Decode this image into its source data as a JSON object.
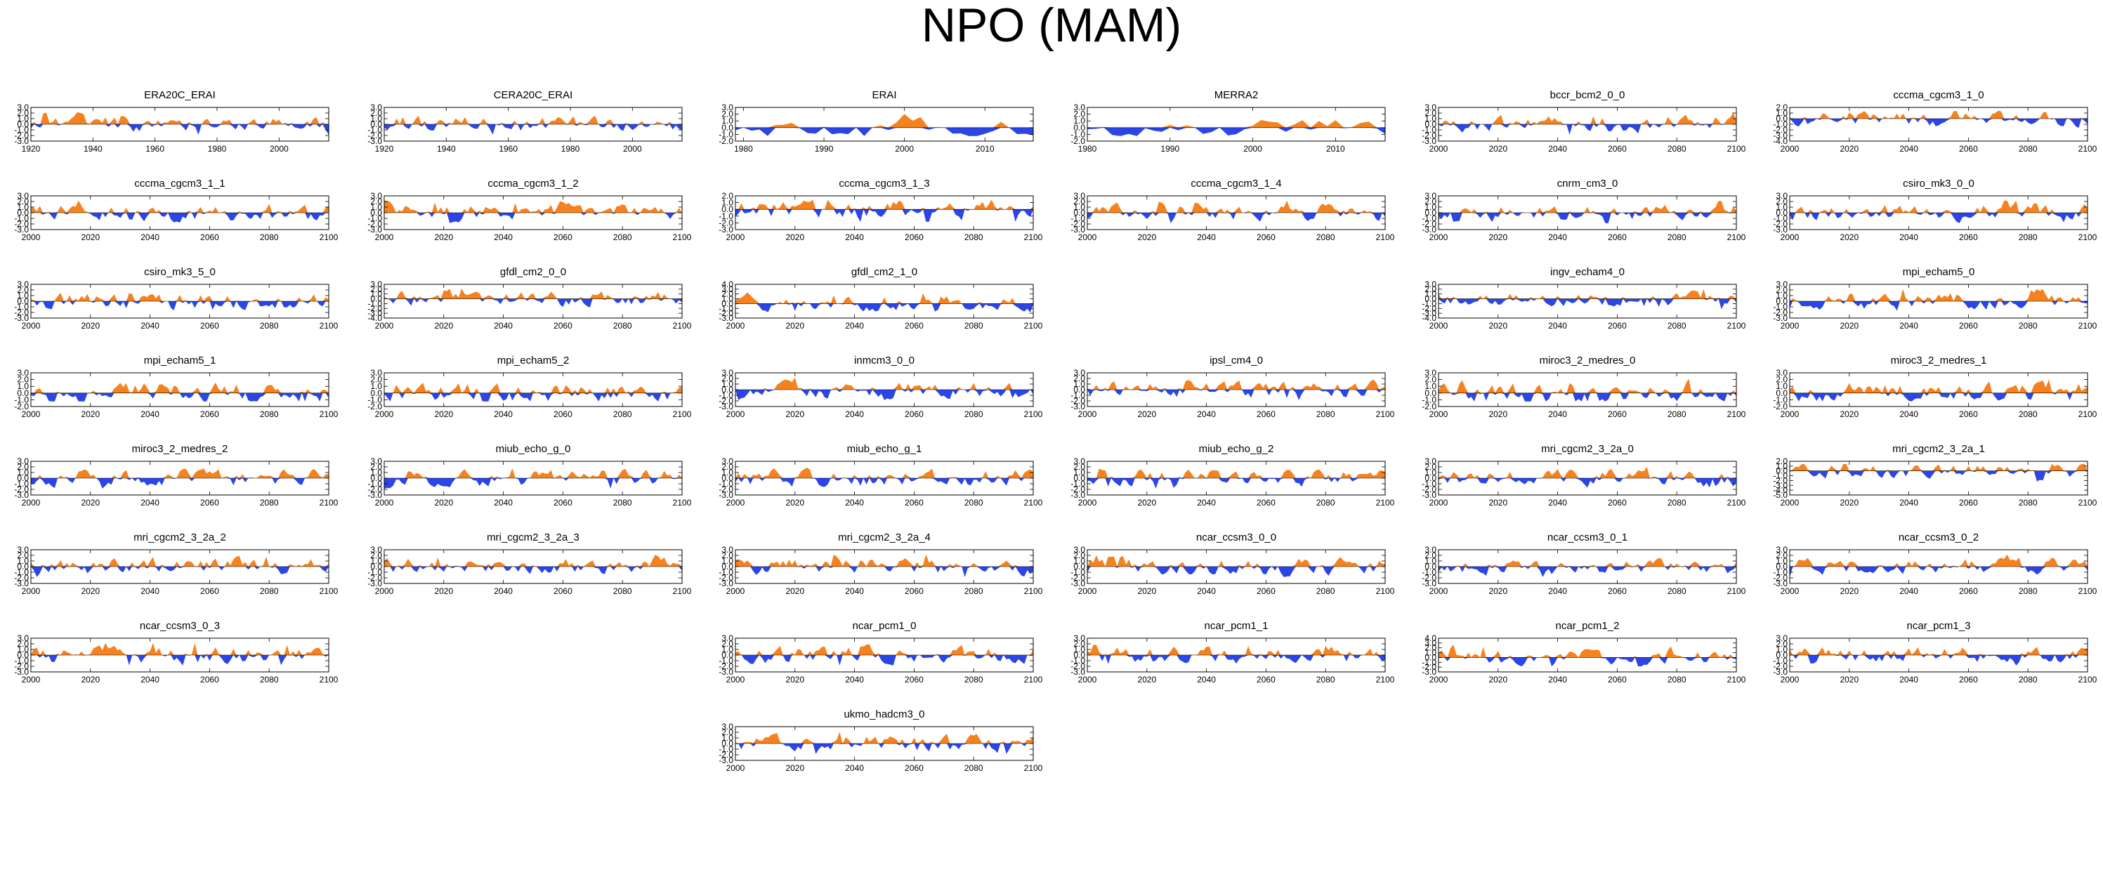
{
  "title": "NPO (MAM)",
  "colors": {
    "positive": "#f5821f",
    "negative": "#2b45e6",
    "axis": "#000000"
  },
  "chart_data": [
    {
      "type": "area",
      "title": "ERA20C_ERAI",
      "xlim": [
        1920,
        2016
      ],
      "xticks": [
        "1920",
        "1940",
        "1960",
        "1980",
        "2000"
      ],
      "yticks": [
        "3.0",
        "2.0",
        "1.0",
        "0.0",
        "-1.0",
        "-2.0",
        "-3.0"
      ],
      "ylim": [
        -3,
        3
      ],
      "seed": 11
    },
    {
      "type": "area",
      "title": "CERA20C_ERAI",
      "xlim": [
        1920,
        2016
      ],
      "xticks": [
        "1920",
        "1940",
        "1960",
        "1980",
        "2000"
      ],
      "yticks": [
        "3.0",
        "2.0",
        "1.0",
        "0.0",
        "-1.0",
        "-2.0",
        "-3.0"
      ],
      "ylim": [
        -3,
        3
      ],
      "seed": 12
    },
    {
      "type": "area",
      "title": "ERAI",
      "xlim": [
        1979,
        2016
      ],
      "xticks": [
        "1980",
        "1990",
        "2000",
        "2010"
      ],
      "yticks": [
        "3.0",
        "2.0",
        "1.0",
        "0.0",
        "-1.0",
        "-2.0"
      ],
      "ylim": [
        -2,
        3
      ],
      "seed": 13
    },
    {
      "type": "area",
      "title": "MERRA2",
      "xlim": [
        1980,
        2016
      ],
      "xticks": [
        "1980",
        "1990",
        "2000",
        "2010"
      ],
      "yticks": [
        "3.0",
        "2.0",
        "1.0",
        "0.0",
        "-1.0",
        "-2.0"
      ],
      "ylim": [
        -2,
        3
      ],
      "seed": 14
    },
    {
      "type": "area",
      "title": "bccr_bcm2_0_0",
      "xlim": [
        2000,
        2100
      ],
      "xticks": [
        "2000",
        "2020",
        "2040",
        "2060",
        "2080",
        "2100"
      ],
      "yticks": [
        "3.0",
        "2.0",
        "1.0",
        "0.0",
        "-1.0",
        "-2.0",
        "-3.0"
      ],
      "ylim": [
        -3,
        3
      ],
      "seed": 15
    },
    {
      "type": "area",
      "title": "cccma_cgcm3_1_0",
      "xlim": [
        2000,
        2100
      ],
      "xticks": [
        "2000",
        "2020",
        "2040",
        "2060",
        "2080",
        "2100"
      ],
      "yticks": [
        "2.0",
        "1.0",
        "0.0",
        "-1.0",
        "-2.0",
        "-3.0",
        "-4.0"
      ],
      "ylim": [
        -4,
        2
      ],
      "seed": 16
    },
    {
      "type": "area",
      "title": "cccma_cgcm3_1_1",
      "xlim": [
        2000,
        2100
      ],
      "xticks": [
        "2000",
        "2020",
        "2040",
        "2060",
        "2080",
        "2100"
      ],
      "yticks": [
        "3.0",
        "2.0",
        "1.0",
        "0.0",
        "-1.0",
        "-2.0",
        "-3.0"
      ],
      "ylim": [
        -3,
        3
      ],
      "seed": 21
    },
    {
      "type": "area",
      "title": "cccma_cgcm3_1_2",
      "xlim": [
        2000,
        2100
      ],
      "xticks": [
        "2000",
        "2020",
        "2040",
        "2060",
        "2080",
        "2100"
      ],
      "yticks": [
        "3.0",
        "2.0",
        "1.0",
        "0.0",
        "-1.0",
        "-2.0",
        "-3.0"
      ],
      "ylim": [
        -3,
        3
      ],
      "seed": 22
    },
    {
      "type": "area",
      "title": "cccma_cgcm3_1_3",
      "xlim": [
        2000,
        2100
      ],
      "xticks": [
        "2000",
        "2020",
        "2040",
        "2060",
        "2080",
        "2100"
      ],
      "yticks": [
        "2.0",
        "1.0",
        "0.0",
        "-1.0",
        "-2.0",
        "-3.0"
      ],
      "ylim": [
        -3,
        2
      ],
      "seed": 23
    },
    {
      "type": "area",
      "title": "cccma_cgcm3_1_4",
      "xlim": [
        2000,
        2100
      ],
      "xticks": [
        "2000",
        "2020",
        "2040",
        "2060",
        "2080",
        "2100"
      ],
      "yticks": [
        "3.0",
        "2.0",
        "1.0",
        "0.0",
        "-1.0",
        "-2.0",
        "-3.0"
      ],
      "ylim": [
        -3,
        3
      ],
      "seed": 24
    },
    {
      "type": "area",
      "title": "cnrm_cm3_0",
      "xlim": [
        2000,
        2100
      ],
      "xticks": [
        "2000",
        "2020",
        "2040",
        "2060",
        "2080",
        "2100"
      ],
      "yticks": [
        "3.0",
        "2.0",
        "1.0",
        "0.0",
        "-1.0",
        "-2.0",
        "-3.0"
      ],
      "ylim": [
        -3,
        3
      ],
      "seed": 25
    },
    {
      "type": "area",
      "title": "csiro_mk3_0_0",
      "xlim": [
        2000,
        2100
      ],
      "xticks": [
        "2000",
        "2020",
        "2040",
        "2060",
        "2080",
        "2100"
      ],
      "yticks": [
        "3.0",
        "2.0",
        "1.0",
        "0.0",
        "-1.0",
        "-2.0",
        "-3.0"
      ],
      "ylim": [
        -3,
        3
      ],
      "seed": 26
    },
    {
      "type": "area",
      "title": "csiro_mk3_5_0",
      "xlim": [
        2000,
        2100
      ],
      "xticks": [
        "2000",
        "2020",
        "2040",
        "2060",
        "2080",
        "2100"
      ],
      "yticks": [
        "3.0",
        "2.0",
        "1.0",
        "0.0",
        "-1.0",
        "-2.0",
        "-3.0"
      ],
      "ylim": [
        -3,
        3
      ],
      "seed": 31
    },
    {
      "type": "area",
      "title": "gfdl_cm2_0_0",
      "xlim": [
        2000,
        2100
      ],
      "xticks": [
        "2000",
        "2020",
        "2040",
        "2060",
        "2080",
        "2100"
      ],
      "yticks": [
        "3.0",
        "2.0",
        "1.0",
        "0.0",
        "-1.0",
        "-2.0",
        "-3.0",
        "-4.0"
      ],
      "ylim": [
        -4,
        3
      ],
      "seed": 32
    },
    {
      "type": "area",
      "title": "gfdl_cm2_1_0",
      "xlim": [
        2000,
        2100
      ],
      "xticks": [
        "2000",
        "2020",
        "2040",
        "2060",
        "2080",
        "2100"
      ],
      "yticks": [
        "4.0",
        "3.0",
        "2.0",
        "1.0",
        "0.0",
        "-1.0",
        "-2.0",
        "-3.0"
      ],
      "ylim": [
        -3,
        4
      ],
      "seed": 33
    },
    {
      "type": "area",
      "title": "ingv_echam4_0",
      "xlim": [
        2000,
        2100
      ],
      "xticks": [
        "2000",
        "2020",
        "2040",
        "2060",
        "2080",
        "2100"
      ],
      "yticks": [
        "3.0",
        "2.0",
        "1.0",
        "0.0",
        "-1.0",
        "-2.0",
        "-3.0",
        "-4.0"
      ],
      "ylim": [
        -4,
        3
      ],
      "seed": 35
    },
    {
      "type": "area",
      "title": "mpi_echam5_0",
      "xlim": [
        2000,
        2100
      ],
      "xticks": [
        "2000",
        "2020",
        "2040",
        "2060",
        "2080",
        "2100"
      ],
      "yticks": [
        "3.0",
        "2.0",
        "1.0",
        "0.0",
        "-1.0",
        "-2.0",
        "-3.0"
      ],
      "ylim": [
        -3,
        3
      ],
      "seed": 36
    },
    {
      "type": "area",
      "title": "mpi_echam5_1",
      "xlim": [
        2000,
        2100
      ],
      "xticks": [
        "2000",
        "2020",
        "2040",
        "2060",
        "2080",
        "2100"
      ],
      "yticks": [
        "3.0",
        "2.0",
        "1.0",
        "0.0",
        "-1.0",
        "-2.0"
      ],
      "ylim": [
        -2,
        3
      ],
      "seed": 41
    },
    {
      "type": "area",
      "title": "mpi_echam5_2",
      "xlim": [
        2000,
        2100
      ],
      "xticks": [
        "2000",
        "2020",
        "2040",
        "2060",
        "2080",
        "2100"
      ],
      "yticks": [
        "3.0",
        "2.0",
        "1.0",
        "0.0",
        "-1.0",
        "-2.0"
      ],
      "ylim": [
        -2,
        3
      ],
      "seed": 42
    },
    {
      "type": "area",
      "title": "inmcm3_0_0",
      "xlim": [
        2000,
        2100
      ],
      "xticks": [
        "2000",
        "2020",
        "2040",
        "2060",
        "2080",
        "2100"
      ],
      "yticks": [
        "3.0",
        "2.0",
        "1.0",
        "0.0",
        "-1.0",
        "-2.0",
        "-3.0"
      ],
      "ylim": [
        -3,
        3
      ],
      "seed": 43
    },
    {
      "type": "area",
      "title": "ipsl_cm4_0",
      "xlim": [
        2000,
        2100
      ],
      "xticks": [
        "2000",
        "2020",
        "2040",
        "2060",
        "2080",
        "2100"
      ],
      "yticks": [
        "3.0",
        "2.0",
        "1.0",
        "0.0",
        "-1.0",
        "-2.0",
        "-3.0"
      ],
      "ylim": [
        -3,
        3
      ],
      "seed": 44
    },
    {
      "type": "area",
      "title": "miroc3_2_medres_0",
      "xlim": [
        2000,
        2100
      ],
      "xticks": [
        "2000",
        "2020",
        "2040",
        "2060",
        "2080",
        "2100"
      ],
      "yticks": [
        "3.0",
        "2.0",
        "1.0",
        "0.0",
        "-1.0",
        "-2.0"
      ],
      "ylim": [
        -2,
        3
      ],
      "seed": 45
    },
    {
      "type": "area",
      "title": "miroc3_2_medres_1",
      "xlim": [
        2000,
        2100
      ],
      "xticks": [
        "2000",
        "2020",
        "2040",
        "2060",
        "2080",
        "2100"
      ],
      "yticks": [
        "3.0",
        "2.0",
        "1.0",
        "0.0",
        "-1.0",
        "-2.0"
      ],
      "ylim": [
        -2,
        3
      ],
      "seed": 46
    },
    {
      "type": "area",
      "title": "miroc3_2_medres_2",
      "xlim": [
        2000,
        2100
      ],
      "xticks": [
        "2000",
        "2020",
        "2040",
        "2060",
        "2080",
        "2100"
      ],
      "yticks": [
        "3.0",
        "2.0",
        "1.0",
        "0.0",
        "-1.0",
        "-2.0",
        "-3.0"
      ],
      "ylim": [
        -3,
        3
      ],
      "seed": 51
    },
    {
      "type": "area",
      "title": "miub_echo_g_0",
      "xlim": [
        2000,
        2100
      ],
      "xticks": [
        "2000",
        "2020",
        "2040",
        "2060",
        "2080",
        "2100"
      ],
      "yticks": [
        "3.0",
        "2.0",
        "1.0",
        "0.0",
        "-1.0",
        "-2.0",
        "-3.0"
      ],
      "ylim": [
        -3,
        3
      ],
      "seed": 52
    },
    {
      "type": "area",
      "title": "miub_echo_g_1",
      "xlim": [
        2000,
        2100
      ],
      "xticks": [
        "2000",
        "2020",
        "2040",
        "2060",
        "2080",
        "2100"
      ],
      "yticks": [
        "3.0",
        "2.0",
        "1.0",
        "0.0",
        "-1.0",
        "-2.0",
        "-3.0"
      ],
      "ylim": [
        -3,
        3
      ],
      "seed": 53
    },
    {
      "type": "area",
      "title": "miub_echo_g_2",
      "xlim": [
        2000,
        2100
      ],
      "xticks": [
        "2000",
        "2020",
        "2040",
        "2060",
        "2080",
        "2100"
      ],
      "yticks": [
        "3.0",
        "2.0",
        "1.0",
        "0.0",
        "-1.0",
        "-2.0",
        "-3.0"
      ],
      "ylim": [
        -3,
        3
      ],
      "seed": 54
    },
    {
      "type": "area",
      "title": "mri_cgcm2_3_2a_0",
      "xlim": [
        2000,
        2100
      ],
      "xticks": [
        "2000",
        "2020",
        "2040",
        "2060",
        "2080",
        "2100"
      ],
      "yticks": [
        "3.0",
        "2.0",
        "1.0",
        "0.0",
        "-1.0",
        "-2.0",
        "-3.0"
      ],
      "ylim": [
        -3,
        3
      ],
      "seed": 55
    },
    {
      "type": "area",
      "title": "mri_cgcm2_3_2a_1",
      "xlim": [
        2000,
        2100
      ],
      "xticks": [
        "2000",
        "2020",
        "2040",
        "2060",
        "2080",
        "2100"
      ],
      "yticks": [
        "2.0",
        "1.0",
        "0.0",
        "-1.0",
        "-2.0",
        "-3.0",
        "-4.0",
        "-5.0"
      ],
      "ylim": [
        -5,
        2
      ],
      "seed": 56
    },
    {
      "type": "area",
      "title": "mri_cgcm2_3_2a_2",
      "xlim": [
        2000,
        2100
      ],
      "xticks": [
        "2000",
        "2020",
        "2040",
        "2060",
        "2080",
        "2100"
      ],
      "yticks": [
        "3.0",
        "2.0",
        "1.0",
        "0.0",
        "-1.0",
        "-2.0",
        "-3.0"
      ],
      "ylim": [
        -3,
        3
      ],
      "seed": 61
    },
    {
      "type": "area",
      "title": "mri_cgcm2_3_2a_3",
      "xlim": [
        2000,
        2100
      ],
      "xticks": [
        "2000",
        "2020",
        "2040",
        "2060",
        "2080",
        "2100"
      ],
      "yticks": [
        "3.0",
        "2.0",
        "1.0",
        "0.0",
        "-1.0",
        "-2.0",
        "-3.0"
      ],
      "ylim": [
        -3,
        3
      ],
      "seed": 62
    },
    {
      "type": "area",
      "title": "mri_cgcm2_3_2a_4",
      "xlim": [
        2000,
        2100
      ],
      "xticks": [
        "2000",
        "2020",
        "2040",
        "2060",
        "2080",
        "2100"
      ],
      "yticks": [
        "3.0",
        "2.0",
        "1.0",
        "0.0",
        "-1.0",
        "-2.0",
        "-3.0"
      ],
      "ylim": [
        -3,
        3
      ],
      "seed": 63
    },
    {
      "type": "area",
      "title": "ncar_ccsm3_0_0",
      "xlim": [
        2000,
        2100
      ],
      "xticks": [
        "2000",
        "2020",
        "2040",
        "2060",
        "2080",
        "2100"
      ],
      "yticks": [
        "3.0",
        "2.0",
        "1.0",
        "0.0",
        "-1.0",
        "-2.0",
        "-3.0"
      ],
      "ylim": [
        -3,
        3
      ],
      "seed": 64
    },
    {
      "type": "area",
      "title": "ncar_ccsm3_0_1",
      "xlim": [
        2000,
        2100
      ],
      "xticks": [
        "2000",
        "2020",
        "2040",
        "2060",
        "2080",
        "2100"
      ],
      "yticks": [
        "3.0",
        "2.0",
        "1.0",
        "0.0",
        "-1.0",
        "-2.0",
        "-3.0"
      ],
      "ylim": [
        -3,
        3
      ],
      "seed": 65
    },
    {
      "type": "area",
      "title": "ncar_ccsm3_0_2",
      "xlim": [
        2000,
        2100
      ],
      "xticks": [
        "2000",
        "2020",
        "2040",
        "2060",
        "2080",
        "2100"
      ],
      "yticks": [
        "3.0",
        "2.0",
        "1.0",
        "0.0",
        "-1.0",
        "-2.0",
        "-3.0"
      ],
      "ylim": [
        -3,
        3
      ],
      "seed": 66
    },
    {
      "type": "area",
      "title": "ncar_ccsm3_0_3",
      "xlim": [
        2000,
        2100
      ],
      "xticks": [
        "2000",
        "2020",
        "2040",
        "2060",
        "2080",
        "2100"
      ],
      "yticks": [
        "3.0",
        "2.0",
        "1.0",
        "0.0",
        "-1.0",
        "-2.0",
        "-3.0"
      ],
      "ylim": [
        -3,
        3
      ],
      "seed": 71
    },
    {
      "type": "area",
      "title": "ncar_pcm1_0",
      "xlim": [
        2000,
        2100
      ],
      "xticks": [
        "2000",
        "2020",
        "2040",
        "2060",
        "2080",
        "2100"
      ],
      "yticks": [
        "3.0",
        "2.0",
        "1.0",
        "0.0",
        "-1.0",
        "-2.0",
        "-3.0"
      ],
      "ylim": [
        -3,
        3
      ],
      "seed": 73
    },
    {
      "type": "area",
      "title": "ncar_pcm1_1",
      "xlim": [
        2000,
        2100
      ],
      "xticks": [
        "2000",
        "2020",
        "2040",
        "2060",
        "2080",
        "2100"
      ],
      "yticks": [
        "3.0",
        "2.0",
        "1.0",
        "0.0",
        "-1.0",
        "-2.0",
        "-3.0"
      ],
      "ylim": [
        -3,
        3
      ],
      "seed": 74
    },
    {
      "type": "area",
      "title": "ncar_pcm1_2",
      "xlim": [
        2000,
        2100
      ],
      "xticks": [
        "2000",
        "2020",
        "2040",
        "2060",
        "2080",
        "2100"
      ],
      "yticks": [
        "4.0",
        "3.0",
        "2.0",
        "1.0",
        "0.0",
        "-1.0",
        "-2.0",
        "-3.0"
      ],
      "ylim": [
        -3,
        4
      ],
      "seed": 75
    },
    {
      "type": "area",
      "title": "ncar_pcm1_3",
      "xlim": [
        2000,
        2100
      ],
      "xticks": [
        "2000",
        "2020",
        "2040",
        "2060",
        "2080",
        "2100"
      ],
      "yticks": [
        "3.0",
        "2.0",
        "1.0",
        "0.0",
        "-1.0",
        "-2.0",
        "-3.0"
      ],
      "ylim": [
        -3,
        3
      ],
      "seed": 76
    },
    {
      "type": "area",
      "title": "ukmo_hadcm3_0",
      "xlim": [
        2000,
        2100
      ],
      "xticks": [
        "2000",
        "2020",
        "2040",
        "2060",
        "2080",
        "2100"
      ],
      "yticks": [
        "3.0",
        "2.0",
        "1.0",
        "0.0",
        "-1.0",
        "-2.0",
        "-3.0"
      ],
      "ylim": [
        -3,
        3
      ],
      "seed": 83
    }
  ]
}
